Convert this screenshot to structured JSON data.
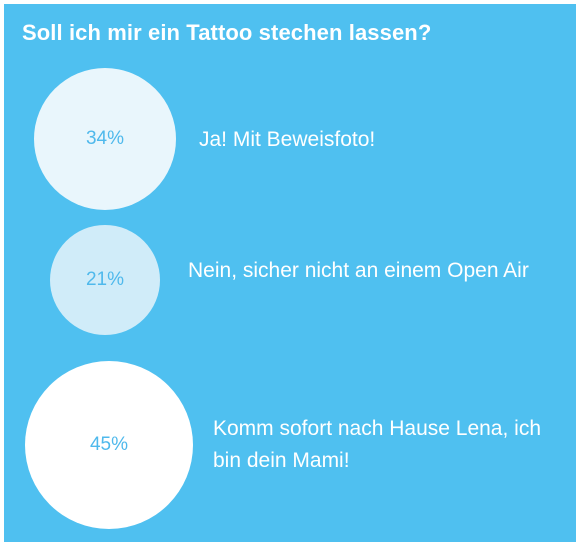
{
  "poll": {
    "title": "Soll ich mir ein Tattoo stechen lassen?",
    "colors": {
      "background": "#4fc0f0",
      "text": "#ffffff",
      "percent_text": "#4fb9ec"
    },
    "options": [
      {
        "percent": "34%",
        "label": "Ja! Mit Beweisfoto!",
        "bubble_color": "#e9f6fc"
      },
      {
        "percent": "21%",
        "label": "Nein, sicher nicht an einem Open Air",
        "bubble_color": "#d0ecf9"
      },
      {
        "percent": "45%",
        "label": "Komm sofort nach Hause Lena, ich bin dein Mami!",
        "bubble_color": "#ffffff"
      }
    ]
  }
}
